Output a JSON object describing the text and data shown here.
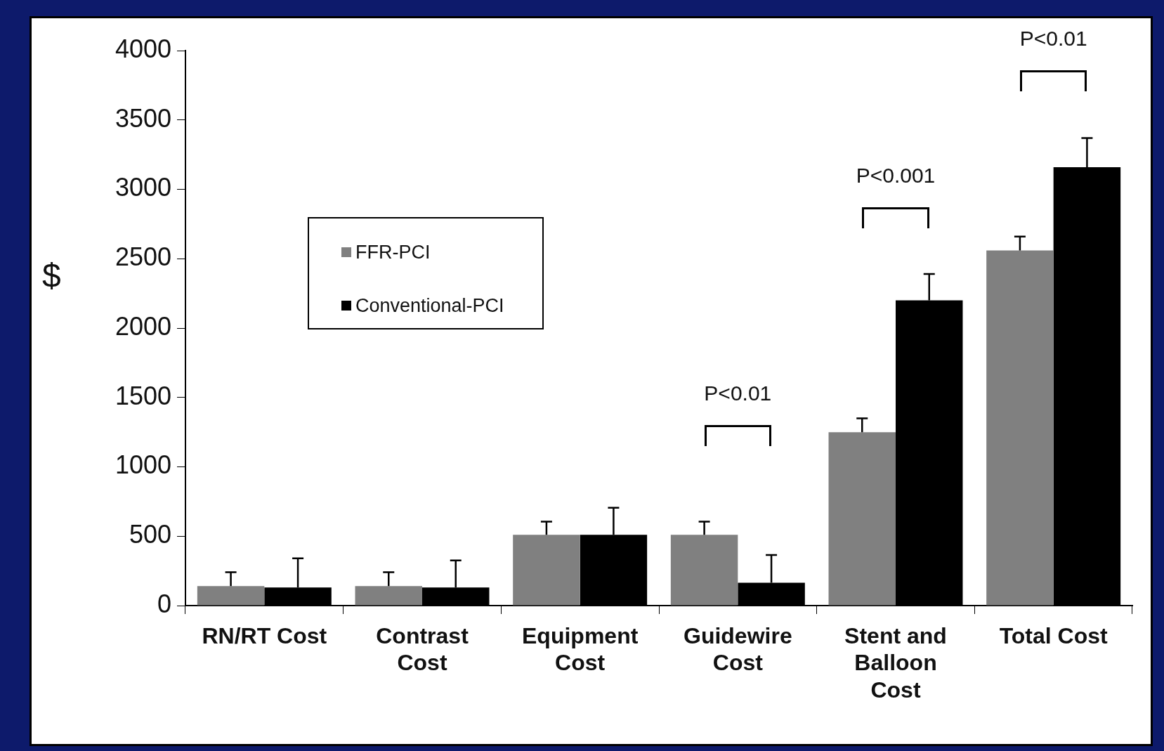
{
  "chart_data": {
    "type": "bar",
    "ylabel": "$",
    "categories": [
      "RN/RT Cost",
      "Contrast Cost",
      "Equipment Cost",
      "Guidewire Cost",
      "Stent and Balloon Cost",
      "Total Cost"
    ],
    "series": [
      {
        "name": "FFR-PCI",
        "color": "#808080",
        "values": [
          140,
          140,
          510,
          510,
          1250,
          2560
        ],
        "errors": [
          100,
          100,
          95,
          95,
          100,
          100
        ]
      },
      {
        "name": "Conventional-PCI",
        "color": "#000000",
        "values": [
          130,
          130,
          510,
          165,
          2200,
          3160
        ],
        "errors": [
          210,
          195,
          195,
          200,
          190,
          210
        ]
      }
    ],
    "ylim": [
      0,
      4000
    ],
    "yticks": [
      0,
      500,
      1000,
      1500,
      2000,
      2500,
      3000,
      3500,
      4000
    ],
    "grid": false,
    "legend": "top left",
    "annotations": [
      "P<0.01",
      "P<0.001",
      "P<0.01"
    ]
  }
}
